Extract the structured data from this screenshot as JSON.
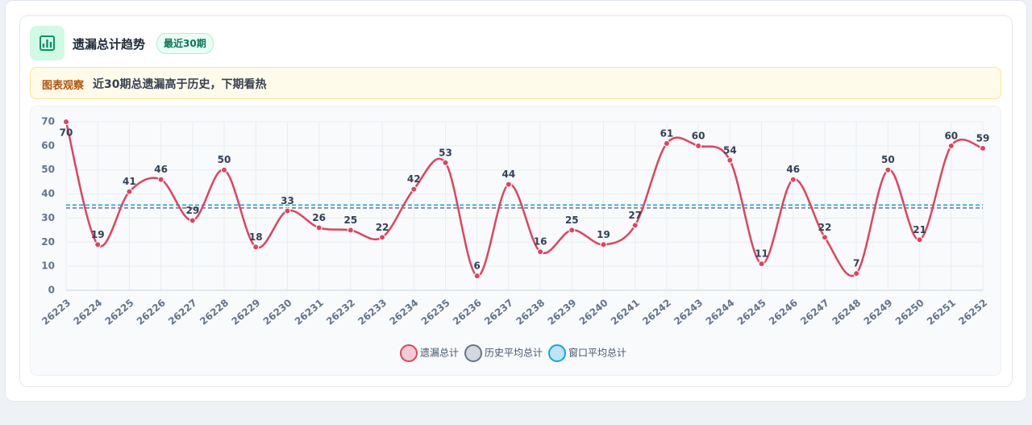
{
  "card": {
    "title": "遗漏总计趋势",
    "badge": "最近30期",
    "note_label": "图表观察",
    "note": "近30期总遗漏高于历史，下期看热"
  },
  "chart_data": {
    "type": "line",
    "categories": [
      "26223",
      "26224",
      "26225",
      "26226",
      "26227",
      "26228",
      "26229",
      "26230",
      "26231",
      "26232",
      "26233",
      "26234",
      "26235",
      "26236",
      "26237",
      "26238",
      "26239",
      "26240",
      "26241",
      "26242",
      "26243",
      "26244",
      "26245",
      "26246",
      "26247",
      "26248",
      "26249",
      "26250",
      "26251",
      "26252"
    ],
    "series": [
      {
        "name": "遗漏总计",
        "color": "#e0435f",
        "values": [
          70,
          19,
          41,
          46,
          29,
          50,
          18,
          33,
          26,
          25,
          22,
          42,
          53,
          6,
          44,
          16,
          25,
          19,
          27,
          61,
          60,
          54,
          11,
          46,
          22,
          7,
          50,
          21,
          60,
          59
        ]
      }
    ],
    "reference_lines": [
      {
        "name": "历史平均总计",
        "color": "#64748b",
        "value": 34.2
      },
      {
        "name": "窗口平均总计",
        "color": "#0ea5e9",
        "value": 35.4
      }
    ],
    "ylim": [
      0,
      70
    ],
    "yticks": [
      0,
      10,
      20,
      30,
      40,
      50,
      60,
      70
    ],
    "grid": true,
    "legend": "bottom"
  }
}
